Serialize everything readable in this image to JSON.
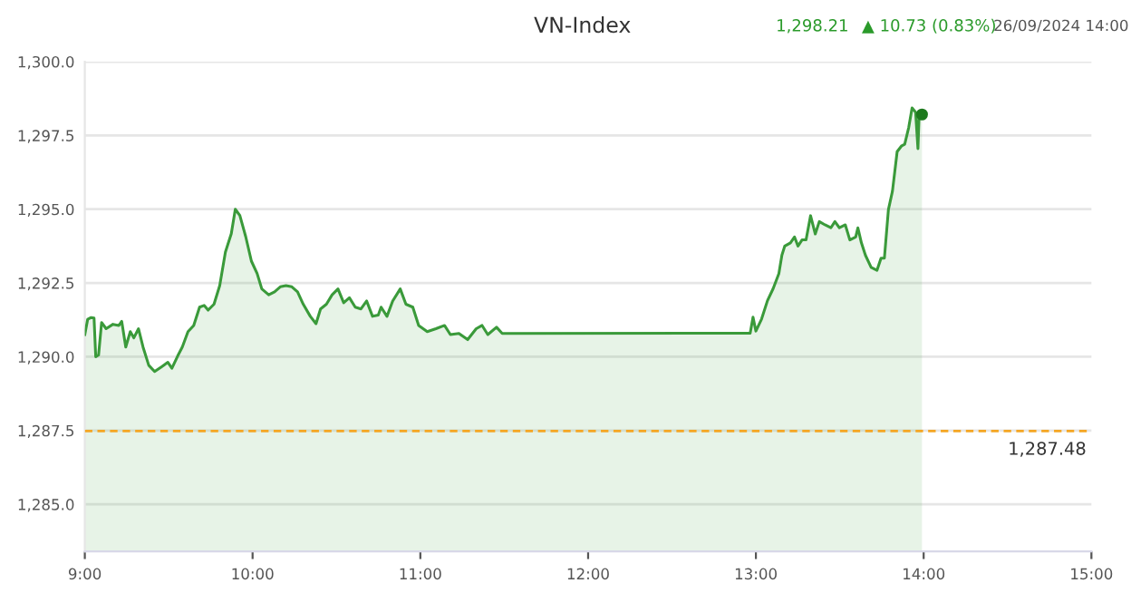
{
  "chart_data": {
    "type": "area",
    "title": "VN-Index",
    "annotations": [
      "1,298.21",
      "▲ 10.73 (0.83%)",
      "26/09/2024 14:00"
    ],
    "series": [
      {
        "color": "#3a9a3a",
        "x": [
          9.0,
          9.017,
          9.038,
          9.055,
          9.065,
          9.082,
          9.1,
          9.127,
          9.168,
          9.203,
          9.22,
          9.244,
          9.271,
          9.292,
          9.32,
          9.347,
          9.381,
          9.416,
          9.46,
          9.495,
          9.519,
          9.553,
          9.581,
          9.615,
          9.649,
          9.684,
          9.711,
          9.735,
          9.77,
          9.804,
          9.838,
          9.873,
          9.897,
          9.924,
          9.959,
          9.993,
          10.027,
          10.055,
          10.096,
          10.131,
          10.165,
          10.199,
          10.234,
          10.268,
          10.302,
          10.344,
          10.378,
          10.405,
          10.44,
          10.474,
          10.509,
          10.543,
          10.577,
          10.612,
          10.646,
          10.68,
          10.715,
          10.749,
          10.766,
          10.801,
          10.835,
          10.88,
          10.914,
          10.955,
          10.99,
          11.041,
          11.093,
          11.144,
          11.179,
          11.23,
          11.282,
          11.333,
          11.368,
          11.402,
          11.454,
          11.488,
          12.966,
          12.983,
          13.0,
          13.034,
          13.069,
          13.103,
          13.137,
          13.155,
          13.172,
          13.206,
          13.23,
          13.251,
          13.275,
          13.299,
          13.326,
          13.354,
          13.378,
          13.412,
          13.447,
          13.471,
          13.498,
          13.533,
          13.56,
          13.595,
          13.608,
          13.629,
          13.653,
          13.687,
          13.722,
          13.746,
          13.766,
          13.79,
          13.814,
          13.842,
          13.869,
          13.887,
          13.911,
          13.931,
          13.952,
          13.966,
          13.973,
          13.99
        ],
        "values": [
          1290.75,
          1291.27,
          1291.33,
          1291.31,
          1290.0,
          1290.06,
          1291.16,
          1290.95,
          1291.1,
          1291.06,
          1291.2,
          1290.33,
          1290.85,
          1290.64,
          1290.95,
          1290.33,
          1289.71,
          1289.5,
          1289.67,
          1289.81,
          1289.61,
          1290.02,
          1290.33,
          1290.85,
          1291.06,
          1291.68,
          1291.74,
          1291.58,
          1291.78,
          1292.41,
          1293.55,
          1294.17,
          1295.0,
          1294.79,
          1294.07,
          1293.24,
          1292.82,
          1292.3,
          1292.1,
          1292.2,
          1292.37,
          1292.41,
          1292.37,
          1292.2,
          1291.78,
          1291.37,
          1291.12,
          1291.62,
          1291.78,
          1292.1,
          1292.3,
          1291.83,
          1292.0,
          1291.68,
          1291.62,
          1291.89,
          1291.37,
          1291.41,
          1291.68,
          1291.37,
          1291.89,
          1292.3,
          1291.78,
          1291.68,
          1291.06,
          1290.85,
          1290.95,
          1291.06,
          1290.75,
          1290.79,
          1290.58,
          1290.95,
          1291.06,
          1290.75,
          1291.0,
          1290.79,
          1290.8,
          1291.34,
          1290.87,
          1291.28,
          1291.9,
          1292.31,
          1292.82,
          1293.44,
          1293.75,
          1293.86,
          1294.06,
          1293.75,
          1293.96,
          1293.96,
          1294.78,
          1294.16,
          1294.58,
          1294.47,
          1294.37,
          1294.58,
          1294.37,
          1294.47,
          1293.96,
          1294.06,
          1294.37,
          1293.86,
          1293.44,
          1293.03,
          1292.93,
          1293.34,
          1293.34,
          1294.99,
          1295.61,
          1296.95,
          1297.15,
          1297.2,
          1297.77,
          1298.43,
          1298.29,
          1297.05,
          1298.19,
          1298.21
        ]
      },
      {
        "type": "scatter",
        "color": "#1e7a1e",
        "x": [
          13.99
        ],
        "values": [
          1298.21
        ]
      }
    ],
    "xlim": [
      9,
      15
    ],
    "xticks": [
      {
        "value": 9,
        "label": "9:00"
      },
      {
        "value": 10,
        "label": "10:00"
      },
      {
        "value": 11,
        "label": "11:00"
      },
      {
        "value": 12,
        "label": "12:00"
      },
      {
        "value": 13,
        "label": "13:00"
      },
      {
        "value": 14,
        "label": "14:00"
      },
      {
        "value": 15,
        "label": "15:00"
      }
    ],
    "ylim": [
      1283.4,
      1300
    ],
    "yticks": [
      {
        "value": 1285,
        "label": "1,285.0"
      },
      {
        "value": 1287.5,
        "label": "1,287.5"
      },
      {
        "value": 1290,
        "label": "1,290.0"
      },
      {
        "value": 1292.5,
        "label": "1,292.5"
      },
      {
        "value": 1295,
        "label": "1,295.0"
      },
      {
        "value": 1297.5,
        "label": "1,297.5"
      },
      {
        "value": 1300,
        "label": "1,300.0"
      }
    ],
    "ref_lines": [
      {
        "axis": "y",
        "value": 1287.48,
        "label": "1,287.48",
        "color": "#f5a623",
        "line_style": "dashed"
      }
    ],
    "grid": "y",
    "legend": false
  }
}
